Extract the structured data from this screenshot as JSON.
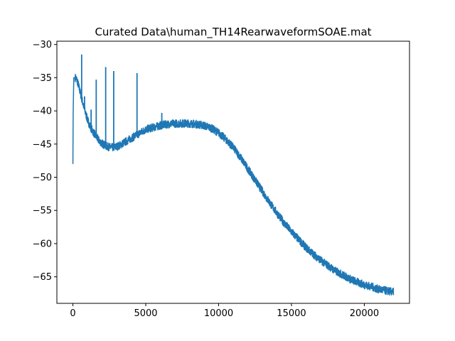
{
  "chart_data": {
    "type": "line",
    "title": "Curated Data\\human_TH14RearwaveformSOAE.mat",
    "xlabel": "",
    "ylabel": "",
    "xlim": [
      -1100,
      23100
    ],
    "ylim": [
      -69,
      -29.5
    ],
    "x_ticks": [
      0,
      5000,
      10000,
      15000,
      20000
    ],
    "x_tick_labels": [
      "0",
      "5000",
      "10000",
      "15000",
      "20000"
    ],
    "y_ticks": [
      -30,
      -35,
      -40,
      -45,
      -50,
      -55,
      -60,
      -65
    ],
    "y_tick_labels": [
      "−30",
      "−35",
      "−40",
      "−45",
      "−50",
      "−55",
      "−60",
      "−65"
    ],
    "grid": false,
    "series": [
      {
        "color": "#1f77b4",
        "x": [
          0,
          20,
          60,
          120,
          200,
          300,
          400,
          500,
          600,
          700,
          800,
          900,
          1000,
          1200,
          1400,
          1600,
          1800,
          2000,
          2200,
          2400,
          2600,
          2800,
          3000,
          3200,
          3500,
          3800,
          4100,
          4400,
          4700,
          5000,
          5500,
          6000,
          6500,
          7000,
          7500,
          8000,
          8500,
          9000,
          9500,
          10000,
          10500,
          11000,
          11500,
          12000,
          12500,
          13000,
          13500,
          14000,
          14500,
          15000,
          15500,
          16000,
          16500,
          17000,
          17500,
          18000,
          18500,
          19000,
          19500,
          20000,
          20500,
          21000,
          21500,
          22000
        ],
        "y": [
          -48.0,
          -40.0,
          -35.0,
          -35.0,
          -35.0,
          -35.5,
          -36.3,
          -37.2,
          -38.1,
          -39.0,
          -39.8,
          -40.6,
          -41.3,
          -42.4,
          -43.2,
          -43.9,
          -44.5,
          -44.9,
          -45.2,
          -45.4,
          -45.5,
          -45.5,
          -45.4,
          -45.2,
          -44.8,
          -44.4,
          -44.0,
          -43.6,
          -43.2,
          -42.8,
          -42.5,
          -42.2,
          -42.0,
          -41.9,
          -41.9,
          -41.9,
          -42.0,
          -42.2,
          -42.6,
          -43.3,
          -44.3,
          -45.5,
          -47.0,
          -48.7,
          -50.4,
          -52.1,
          -53.8,
          -55.4,
          -56.9,
          -58.2,
          -59.4,
          -60.6,
          -61.6,
          -62.5,
          -63.3,
          -64.1,
          -64.7,
          -65.3,
          -65.8,
          -66.2,
          -66.5,
          -66.9,
          -67.1,
          -67.3
        ]
      }
    ],
    "peaks": [
      {
        "x": 600,
        "y": -31.5
      },
      {
        "x": 800,
        "y": -37.8
      },
      {
        "x": 1250,
        "y": -39.8
      },
      {
        "x": 1600,
        "y": -35.3
      },
      {
        "x": 2250,
        "y": -33.4
      },
      {
        "x": 2800,
        "y": -34.0
      },
      {
        "x": 4400,
        "y": -34.3
      },
      {
        "x": 6100,
        "y": -40.3
      }
    ],
    "noise_band": 0.6
  }
}
